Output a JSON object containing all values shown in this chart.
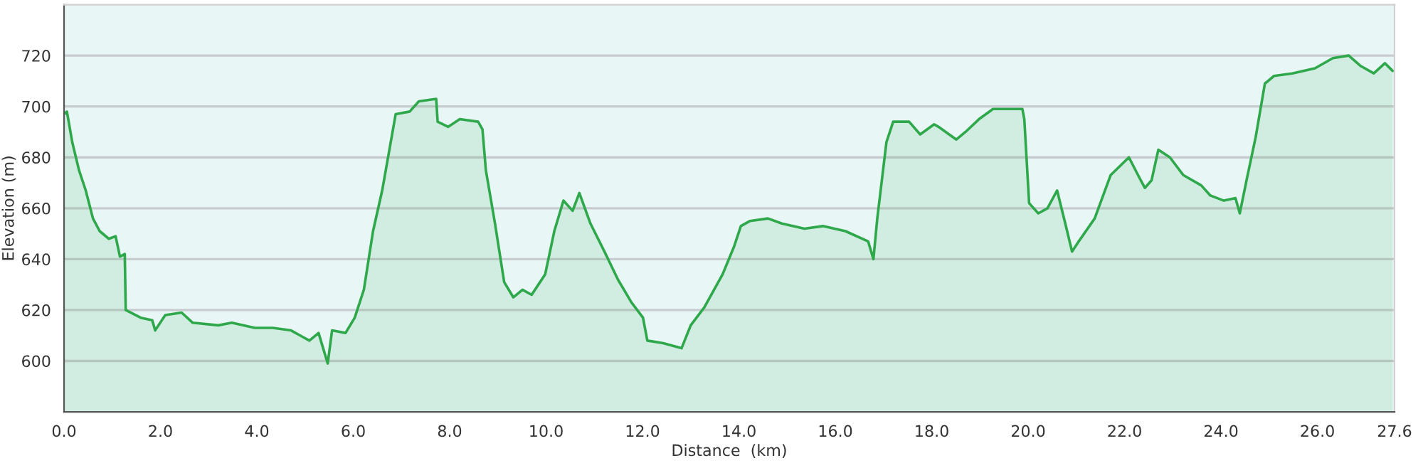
{
  "chart_data": {
    "type": "area",
    "xlabel": "Distance  (km)",
    "ylabel": "Elevation (m)",
    "xlim": [
      0,
      27.6
    ],
    "xticks": [
      {
        "value": 0,
        "label": "0.0"
      },
      {
        "value": 2,
        "label": "2.0"
      },
      {
        "value": 4,
        "label": "4.0"
      },
      {
        "value": 6,
        "label": "6.0"
      },
      {
        "value": 8,
        "label": "8.0"
      },
      {
        "value": 10,
        "label": "10.0"
      },
      {
        "value": 12,
        "label": "12.0"
      },
      {
        "value": 14,
        "label": "14.0"
      },
      {
        "value": 16,
        "label": "16.0"
      },
      {
        "value": 18,
        "label": "18.0"
      },
      {
        "value": 20,
        "label": "20.0"
      },
      {
        "value": 22,
        "label": "22.0"
      },
      {
        "value": 24,
        "label": "24.0"
      },
      {
        "value": 26,
        "label": "26.0"
      },
      27.6
    ],
    "ylim": [
      580,
      740
    ],
    "yticks": [
      600,
      620,
      640,
      660,
      680,
      700,
      720
    ],
    "grid": "y",
    "series": [
      {
        "color": "#2ea84a",
        "x": [
          0,
          0.06,
          0.17,
          0.31,
          0.45,
          0.6,
          0.74,
          0.93,
          1.07,
          1.16,
          1.26,
          1.28,
          1.59,
          1.83,
          1.89,
          2.1,
          2.44,
          2.67,
          3.2,
          3.48,
          3.96,
          4.33,
          4.71,
          4.9,
          5.09,
          5.28,
          5.47,
          5.56,
          5.84,
          6.03,
          6.22,
          6.41,
          6.6,
          6.74,
          6.88,
          7.17,
          7.36,
          7.72,
          7.75,
          7.97,
          8.21,
          8.59,
          8.68,
          8.75,
          8.94,
          9.13,
          9.32,
          9.51,
          9.7,
          9.98,
          10.17,
          10.36,
          10.55,
          10.69,
          10.92,
          11.21,
          11.49,
          11.77,
          12.01,
          12.1,
          12.43,
          12.81,
          13.0,
          13.28,
          13.66,
          13.9,
          14.04,
          14.23,
          14.6,
          14.89,
          15.36,
          15.74,
          16.21,
          16.68,
          16.79,
          16.87,
          17.06,
          17.2,
          17.53,
          17.76,
          18.05,
          18.14,
          18.51,
          18.7,
          18.98,
          19.27,
          19.74,
          19.88,
          19.92,
          20.02,
          20.21,
          20.4,
          20.6,
          20.77,
          20.91,
          21.05,
          21.38,
          21.71,
          22.09,
          22.28,
          22.42,
          22.56,
          22.7,
          22.94,
          23.22,
          23.59,
          23.78,
          24.06,
          24.3,
          24.39,
          24.53,
          24.72,
          24.91,
          25.1,
          25.48,
          25.95,
          26.32,
          26.65,
          26.89,
          27.17,
          27.4,
          27.56
        ],
        "values": [
          697,
          698,
          686,
          675,
          667,
          656,
          651,
          648,
          649,
          641,
          642,
          620,
          617,
          616,
          612,
          618,
          619,
          615,
          614,
          615,
          613,
          613,
          612,
          610,
          608,
          611,
          599,
          612,
          611,
          617,
          628,
          651,
          667,
          682,
          697,
          698,
          702,
          703,
          694,
          692,
          695,
          694,
          691,
          675,
          654,
          631,
          625,
          628,
          626,
          634,
          651,
          663,
          659,
          666,
          654,
          643,
          632,
          623,
          617,
          608,
          607,
          605,
          614,
          621,
          634,
          645,
          653,
          655,
          656,
          654,
          652,
          653,
          651,
          647,
          640,
          656,
          686,
          694,
          694,
          689,
          693,
          692,
          687,
          690,
          695,
          699,
          699,
          699,
          695,
          662,
          658,
          660,
          667,
          654,
          643,
          647,
          656,
          673,
          680,
          673,
          668,
          671,
          683,
          680,
          673,
          669,
          665,
          663,
          664,
          658,
          671,
          688,
          709,
          712,
          713,
          715,
          719,
          720,
          716,
          713,
          717,
          714
        ]
      }
    ]
  }
}
